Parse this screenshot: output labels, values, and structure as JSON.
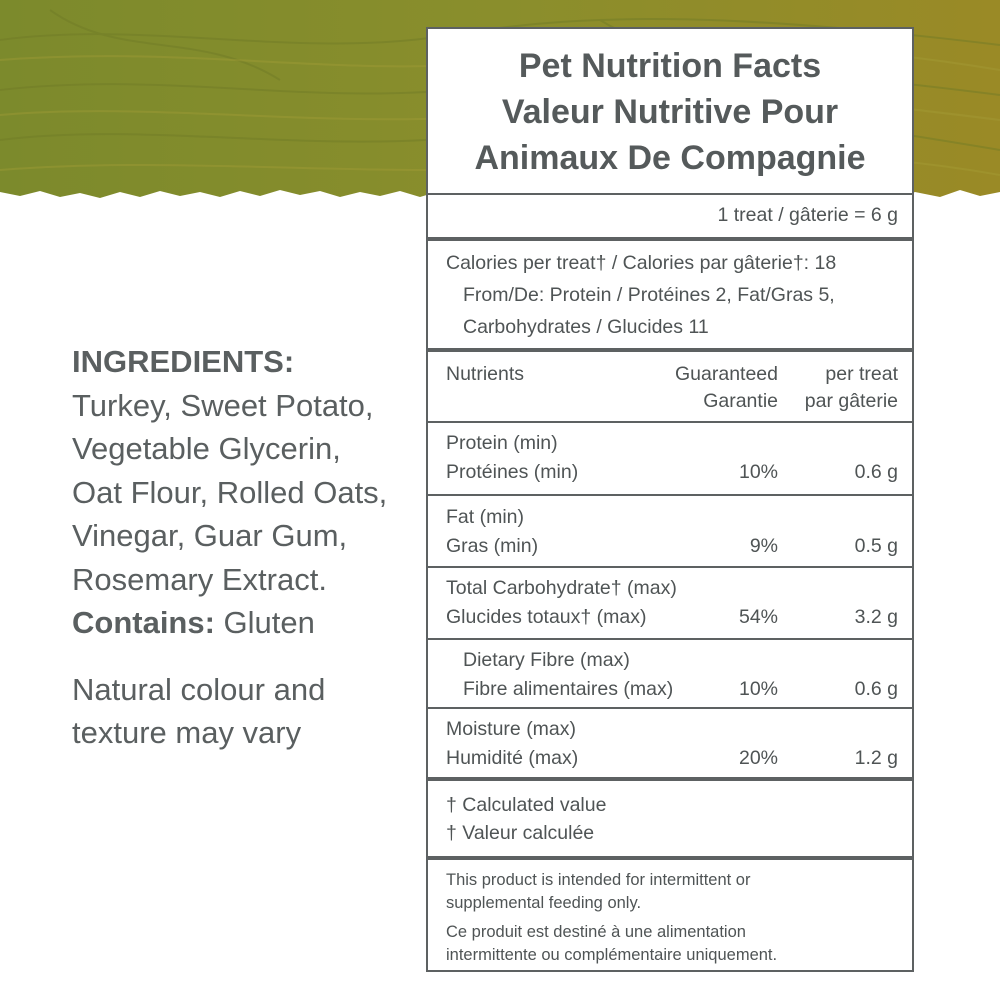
{
  "colors": {
    "banner": "#8a8a2a",
    "panel_border": "#5d6162",
    "text": "#555a5b"
  },
  "ingredients": {
    "heading": "INGREDIENTS:",
    "lines": [
      "Turkey, Sweet Potato,",
      "Vegetable Glycerin,",
      "Oat Flour, Rolled Oats,",
      "Vinegar, Guar Gum,",
      "Rosemary Extract."
    ],
    "contains_label": "Contains:",
    "contains_value": " Gluten",
    "note_lines": [
      "Natural colour and",
      "texture may vary"
    ]
  },
  "panel": {
    "title_lines": [
      "Pet Nutrition Facts",
      "Valeur Nutritive Pour",
      "Animaux De Compagnie"
    ],
    "serving": "1 treat / gâterie  = 6 g",
    "calories_lines": [
      "Calories per treat† / Calories par gâterie†: 18",
      "From/De: Protein / Protéines 2, Fat/Gras 5,",
      "Carbohydrates / Glucides 11"
    ],
    "headers": {
      "nutrients": "Nutrients",
      "guaranteed_1": "Guaranteed",
      "guaranteed_2": "Garantie",
      "per_treat_1": "per treat",
      "per_treat_2": "par gâterie"
    },
    "rows": [
      {
        "label_en": "Protein (min)",
        "label_fr": "Protéines (min)",
        "guaranteed": "10%",
        "per_treat": "0.6 g"
      },
      {
        "label_en": "Fat (min)",
        "label_fr": "Gras (min)",
        "guaranteed": "9%",
        "per_treat": "0.5 g"
      },
      {
        "label_en": "Total Carbohydrate† (max)",
        "label_fr": "Glucides totaux† (max)",
        "guaranteed": "54%",
        "per_treat": "3.2 g"
      },
      {
        "label_en": "Dietary Fibre (max)",
        "label_fr": "Fibre alimentaires (max)",
        "guaranteed": "10%",
        "per_treat": "0.6 g"
      },
      {
        "label_en": "Moisture (max)",
        "label_fr": "Humidité (max)",
        "guaranteed": "20%",
        "per_treat": "1.2 g"
      }
    ],
    "footnote_lines": [
      "† Calculated value",
      "† Valeur calculée"
    ],
    "disclaimer_en_lines": [
      "This product is intended for intermittent or",
      "supplemental feeding only."
    ],
    "disclaimer_fr_lines": [
      "Ce produit est destiné à une alimentation",
      "intermittente ou complémentaire uniquement."
    ]
  }
}
